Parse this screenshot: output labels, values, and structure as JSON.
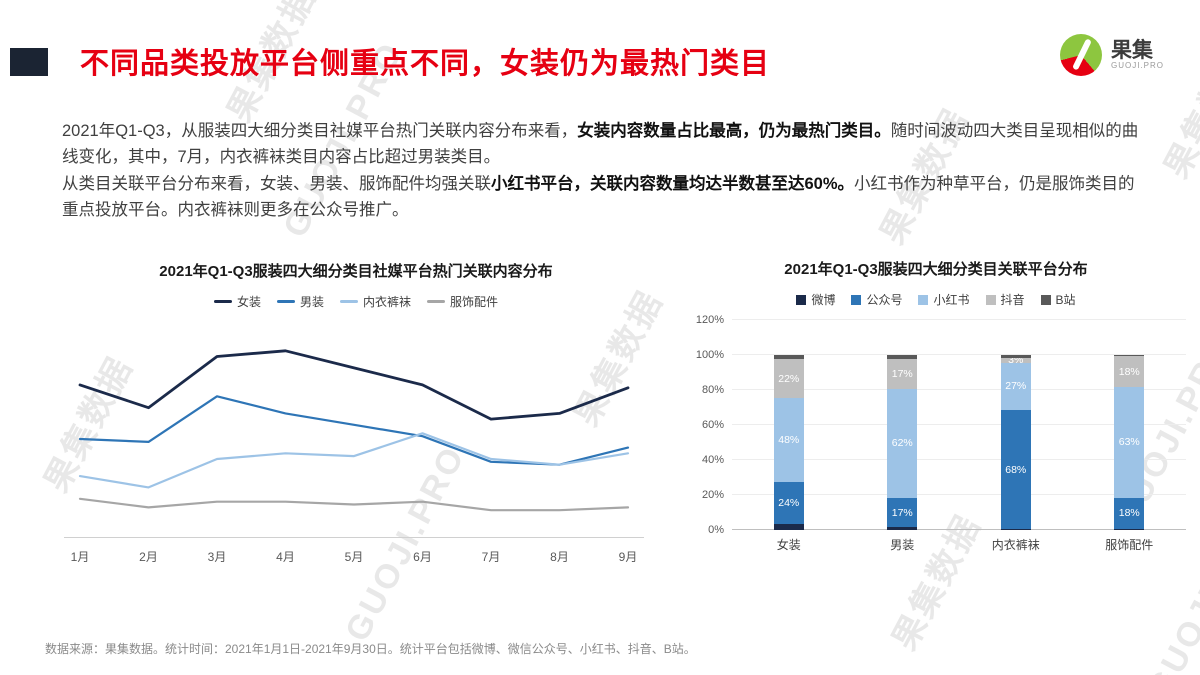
{
  "header": {
    "title": "不同品类投放平台侧重点不同，女装仍为最热门类目",
    "title_color": "#e60012",
    "accent_color": "#1b2433",
    "logo": {
      "text": "果集",
      "sub": "GUOJI.PRO"
    }
  },
  "body": {
    "p1": [
      {
        "t": "2021年Q1-Q3，从服装四大细分类目社媒平台热门关联内容分布来看，",
        "b": false
      },
      {
        "t": "女装内容数量占比最高，仍为最热门类目。",
        "b": true
      },
      {
        "t": "随时间波动四大类目呈现相似的曲线变化，其中，7月，内衣裤袜类目内容占比超过男装类目。",
        "b": false
      }
    ],
    "p2": [
      {
        "t": "从类目关联平台分布来看，女装、男装、服饰配件均强关联",
        "b": false
      },
      {
        "t": "小红书平台",
        "b": true
      },
      {
        "t": "，关联内容数量均达半数甚至达60%。",
        "b": true
      },
      {
        "t": "小红书作为种草平台，仍是服饰类目的重点投放平台。内衣裤袜则更多在公众号推广。",
        "b": false
      }
    ]
  },
  "chart_data": [
    {
      "type": "line",
      "title": "2021年Q1-Q3服装四大细分类目社媒平台热门关联内容分布",
      "x": [
        "1月",
        "2月",
        "3月",
        "4月",
        "5月",
        "6月",
        "7月",
        "8月",
        "9月"
      ],
      "series": [
        {
          "name": "女装",
          "color": "#1b2a4a",
          "w": 2.8,
          "values": [
            52,
            44,
            62,
            64,
            58,
            52,
            40,
            42,
            51
          ]
        },
        {
          "name": "男装",
          "color": "#2e75b6",
          "w": 2.2,
          "values": [
            33,
            32,
            48,
            42,
            38,
            34,
            25,
            24,
            30
          ]
        },
        {
          "name": "内衣裤袜",
          "color": "#9dc3e6",
          "w": 2.2,
          "values": [
            20,
            16,
            26,
            28,
            27,
            35,
            26,
            24,
            28
          ]
        },
        {
          "name": "服饰配件",
          "color": "#a6a6a6",
          "w": 2.2,
          "values": [
            12,
            9,
            11,
            11,
            10,
            11,
            8,
            8,
            9
          ]
        }
      ],
      "ylim": [
        0,
        72
      ],
      "grid": false,
      "legend_position": "top"
    },
    {
      "type": "bar",
      "stacked": true,
      "title": "2021年Q1-Q3服装四大细分类目关联平台分布",
      "categories": [
        "女装",
        "男装",
        "内衣裤袜",
        "服饰配件"
      ],
      "series": [
        {
          "name": "微博",
          "color": "#1b2a4a",
          "values": [
            3.5,
            1.5,
            0.5,
            0.5
          ]
        },
        {
          "name": "公众号",
          "color": "#2e75b6",
          "values": [
            24,
            17,
            68,
            18
          ]
        },
        {
          "name": "小红书",
          "color": "#9dc3e6",
          "values": [
            48,
            62,
            27,
            63
          ]
        },
        {
          "name": "抖音",
          "color": "#bfbfbf",
          "values": [
            22,
            17,
            3,
            18
          ]
        },
        {
          "name": "B站",
          "color": "#595959",
          "values": [
            2.5,
            2.5,
            1.5,
            0.5
          ]
        }
      ],
      "labels": [
        [
          "",
          "24%",
          "48%",
          "22%",
          ""
        ],
        [
          "",
          "17%",
          "62%",
          "17%",
          ""
        ],
        [
          "",
          "68%",
          "27%",
          "3%",
          ""
        ],
        [
          "",
          "18%",
          "63%",
          "18%",
          ""
        ]
      ],
      "yticks": [
        "0%",
        "20%",
        "40%",
        "60%",
        "80%",
        "100%",
        "120%"
      ],
      "ylim": [
        0,
        120
      ],
      "grid": true,
      "legend_position": "top"
    }
  ],
  "footer": {
    "source": "数据来源：果集数据。统计时间：2021年1月1日-2021年9月30日。统计平台包括微博、微信公众号、小红书、抖音、B站。"
  },
  "watermarks": [
    "果集数据",
    "GUOJI.PRO",
    "果集数据",
    "GUOJI.PRO",
    "果集数据",
    "GUOJI.PRO",
    "果集数据",
    "果集数据",
    "GUOJI.PRO",
    "果集数据"
  ]
}
